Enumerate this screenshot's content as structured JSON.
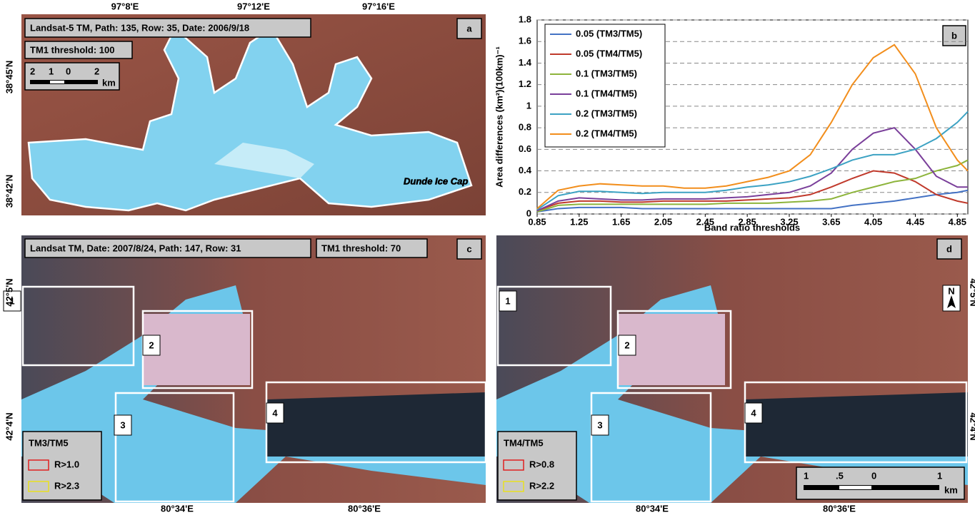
{
  "panel_a": {
    "letter": "a",
    "info": "Landsat-5 TM, Path: 135, Row: 35, Date: 2006/9/18",
    "threshold": "TM1 threshold: 100",
    "scale": [
      "2",
      "1",
      "0",
      "2",
      "km"
    ],
    "lon_labels": [
      "97°8'E",
      "97°12'E",
      "97°16'E"
    ],
    "lat_labels": [
      "38°45'N",
      "38°42'N"
    ],
    "place": "Dunde Ice Cap"
  },
  "chart_data": {
    "type": "line",
    "letter": "b",
    "x_label": "Band ratio thresholds",
    "y_label": "Area differences (km²)(100km)⁻¹",
    "x": [
      0.85,
      1.05,
      1.25,
      1.45,
      1.65,
      1.85,
      2.05,
      2.25,
      2.45,
      2.65,
      2.85,
      3.05,
      3.25,
      3.45,
      3.65,
      3.85,
      4.05,
      4.25,
      4.45,
      4.65,
      4.85,
      4.95
    ],
    "series": [
      {
        "name": "0.05 (TM3/TM5)",
        "color": "#4472c4",
        "values": [
          0.02,
          0.05,
          0.06,
          0.06,
          0.06,
          0.05,
          0.05,
          0.05,
          0.05,
          0.05,
          0.05,
          0.05,
          0.05,
          0.05,
          0.05,
          0.08,
          0.1,
          0.12,
          0.15,
          0.18,
          0.2,
          0.22
        ]
      },
      {
        "name": "0.05 (TM4/TM5)",
        "color": "#c0392b",
        "values": [
          0.03,
          0.1,
          0.12,
          0.12,
          0.11,
          0.11,
          0.12,
          0.12,
          0.12,
          0.12,
          0.13,
          0.14,
          0.15,
          0.18,
          0.25,
          0.33,
          0.4,
          0.38,
          0.3,
          0.18,
          0.12,
          0.1
        ]
      },
      {
        "name": "0.1 (TM3/TM5)",
        "color": "#8db43b",
        "values": [
          0.02,
          0.08,
          0.09,
          0.09,
          0.09,
          0.09,
          0.09,
          0.09,
          0.09,
          0.1,
          0.1,
          0.1,
          0.11,
          0.12,
          0.14,
          0.2,
          0.25,
          0.3,
          0.33,
          0.4,
          0.45,
          0.5
        ]
      },
      {
        "name": "0.1 (TM4/TM5)",
        "color": "#7a3f9a",
        "values": [
          0.03,
          0.12,
          0.15,
          0.14,
          0.13,
          0.13,
          0.14,
          0.14,
          0.14,
          0.15,
          0.16,
          0.18,
          0.2,
          0.26,
          0.38,
          0.6,
          0.75,
          0.8,
          0.6,
          0.35,
          0.25,
          0.25
        ]
      },
      {
        "name": "0.2 (TM3/TM5)",
        "color": "#3ca2c3",
        "values": [
          0.04,
          0.17,
          0.21,
          0.21,
          0.2,
          0.19,
          0.2,
          0.2,
          0.2,
          0.22,
          0.25,
          0.27,
          0.3,
          0.35,
          0.42,
          0.5,
          0.55,
          0.55,
          0.6,
          0.7,
          0.85,
          0.95
        ]
      },
      {
        "name": "0.2 (TM4/TM5)",
        "color": "#f28e1c",
        "values": [
          0.05,
          0.22,
          0.26,
          0.28,
          0.27,
          0.26,
          0.26,
          0.24,
          0.24,
          0.26,
          0.3,
          0.34,
          0.4,
          0.55,
          0.85,
          1.2,
          1.45,
          1.57,
          1.3,
          0.8,
          0.5,
          0.4
        ]
      }
    ],
    "xlim": [
      0.85,
      4.95
    ],
    "ylim": [
      0,
      1.8
    ],
    "xticks": [
      0.85,
      1.25,
      1.65,
      2.05,
      2.45,
      2.85,
      3.25,
      3.65,
      4.05,
      4.45,
      4.85
    ],
    "yticks": [
      0,
      0.2,
      0.4,
      0.6,
      0.8,
      1,
      1.2,
      1.4,
      1.6,
      1.8
    ],
    "grid": true
  },
  "panel_c": {
    "letter": "c",
    "info": "Landsat TM, Date: 2007/8/24, Path: 147, Row: 31",
    "threshold": "TM1 threshold: 70",
    "boxes": [
      "1",
      "2",
      "3",
      "4"
    ],
    "legend": {
      "title": "TM3/TM5",
      "items": [
        "R>1.0",
        "R>2.3"
      ]
    },
    "lat_labels": [
      "42°5'N",
      "42°4'N"
    ],
    "lon_labels": [
      "80°34'E",
      "80°36'E"
    ]
  },
  "panel_d": {
    "letter": "d",
    "boxes": [
      "1",
      "2",
      "3",
      "4"
    ],
    "legend": {
      "title": "TM4/TM5",
      "items": [
        "R>0.8",
        "R>2.2"
      ]
    },
    "scale": [
      "1",
      ".5",
      "0",
      "1",
      "km"
    ],
    "north": "N",
    "lat_labels": [
      "42°5'N",
      "42°4'N"
    ],
    "lon_labels": [
      "80°34'E",
      "80°36'E"
    ]
  }
}
